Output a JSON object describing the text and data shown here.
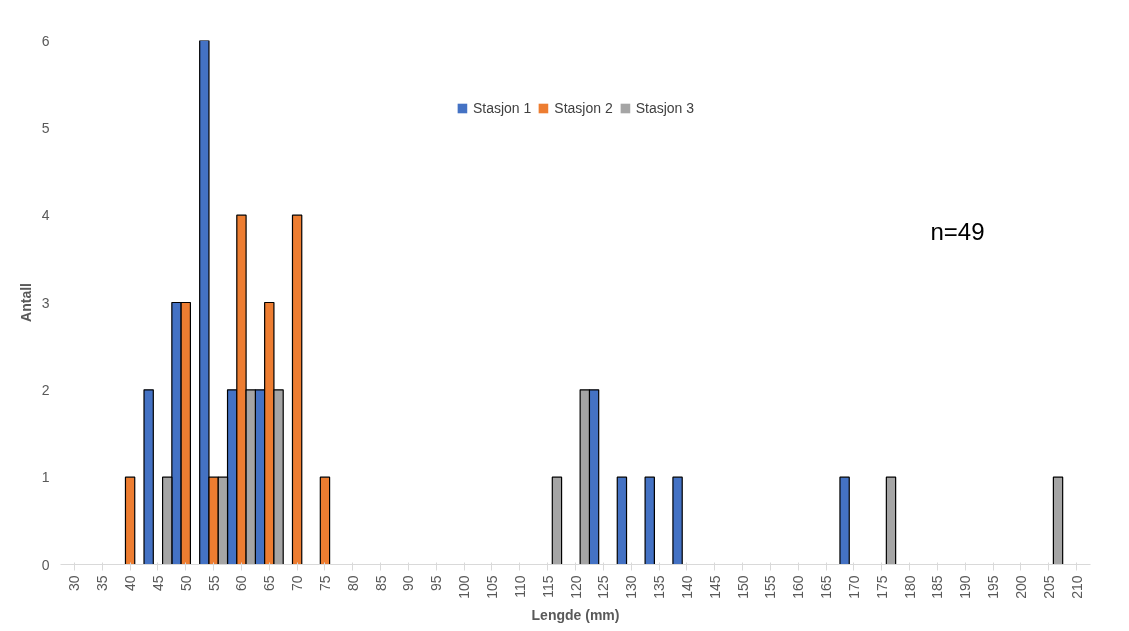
{
  "chart_data": {
    "type": "bar",
    "xlabel": "Lengde (mm)",
    "ylabel": "Antall",
    "categories": [
      "30",
      "35",
      "40",
      "45",
      "50",
      "55",
      "60",
      "65",
      "70",
      "75",
      "80",
      "85",
      "90",
      "95",
      "100",
      "105",
      "110",
      "115",
      "120",
      "125",
      "130",
      "135",
      "140",
      "145",
      "150",
      "155",
      "160",
      "165",
      "170",
      "175",
      "180",
      "185",
      "190",
      "195",
      "200",
      "205",
      "210"
    ],
    "series": [
      {
        "name": "Stasjon 1",
        "color": "#4472c4",
        "values": [
          0,
          0,
          0,
          2,
          3,
          6,
          2,
          2,
          0,
          0,
          0,
          0,
          0,
          0,
          0,
          0,
          0,
          0,
          0,
          2,
          1,
          1,
          1,
          0,
          0,
          0,
          0,
          0,
          1,
          0,
          0,
          0,
          0,
          0,
          0,
          0,
          0
        ]
      },
      {
        "name": "Stasjon 2",
        "color": "#ed7d31",
        "values": [
          0,
          0,
          1,
          0,
          3,
          1,
          4,
          3,
          4,
          1,
          0,
          0,
          0,
          0,
          0,
          0,
          0,
          0,
          0,
          0,
          0,
          0,
          0,
          0,
          0,
          0,
          0,
          0,
          0,
          0,
          0,
          0,
          0,
          0,
          0,
          0,
          0
        ]
      },
      {
        "name": "Stasjon 3",
        "color": "#a5a5a5",
        "values": [
          0,
          0,
          0,
          1,
          0,
          1,
          2,
          2,
          0,
          0,
          0,
          0,
          0,
          0,
          0,
          0,
          0,
          1,
          2,
          0,
          0,
          0,
          0,
          0,
          0,
          0,
          0,
          0,
          0,
          1,
          0,
          0,
          0,
          0,
          0,
          1,
          0
        ]
      }
    ],
    "ylim": [
      0,
      6
    ],
    "yticks": [
      0,
      1,
      2,
      3,
      4,
      5,
      6
    ],
    "grid": false,
    "legend": "top",
    "annotations": [
      "n=49"
    ]
  }
}
